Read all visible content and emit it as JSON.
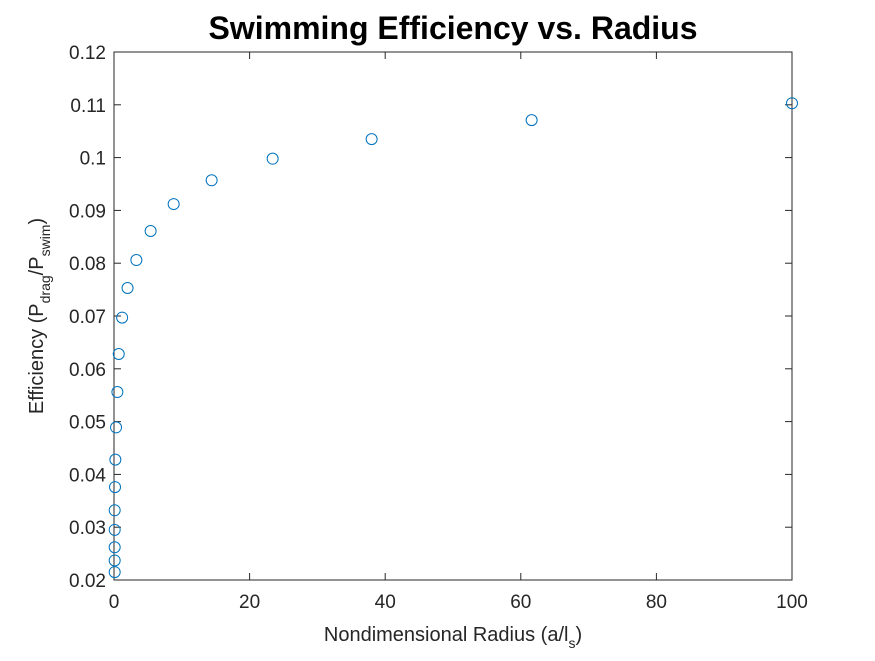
{
  "chart_data": {
    "type": "scatter",
    "title": "Swimming Efficiency vs. Radius",
    "xlabel": {
      "prefix": "Nondimensional Radius (a/l",
      "sub": "s",
      "suffix": ")"
    },
    "ylabel": {
      "prefix": "Efficiency (P",
      "sub1": "drag",
      "mid": "/P",
      "sub2": "swim",
      "suffix": ")"
    },
    "xlim": [
      0,
      100
    ],
    "ylim": [
      0.02,
      0.12
    ],
    "xticks": [
      0,
      20,
      40,
      60,
      80,
      100
    ],
    "xtick_labels": [
      "0",
      "20",
      "40",
      "60",
      "80",
      "100"
    ],
    "yticks": [
      0.02,
      0.03,
      0.04,
      0.05,
      0.06,
      0.07,
      0.08,
      0.09,
      0.1,
      0.11,
      0.12
    ],
    "ytick_labels": [
      "0.02",
      "0.03",
      "0.04",
      "0.05",
      "0.06",
      "0.07",
      "0.08",
      "0.09",
      "0.1",
      "0.11",
      "0.12"
    ],
    "grid": false,
    "marker": "circle",
    "marker_color": "#0072BD",
    "x": [
      0.1,
      0.1,
      0.1,
      0.1,
      0.1,
      0.15,
      0.2,
      0.3,
      0.5,
      0.7,
      1.2,
      2.0,
      3.3,
      5.4,
      8.8,
      14.4,
      23.4,
      38.0,
      61.6,
      100.0
    ],
    "y": [
      0.0215,
      0.0237,
      0.0262,
      0.0295,
      0.0332,
      0.0376,
      0.0428,
      0.0489,
      0.0556,
      0.0628,
      0.0697,
      0.0753,
      0.0806,
      0.0861,
      0.0912,
      0.0957,
      0.0998,
      0.1035,
      0.1071,
      0.1103
    ]
  }
}
